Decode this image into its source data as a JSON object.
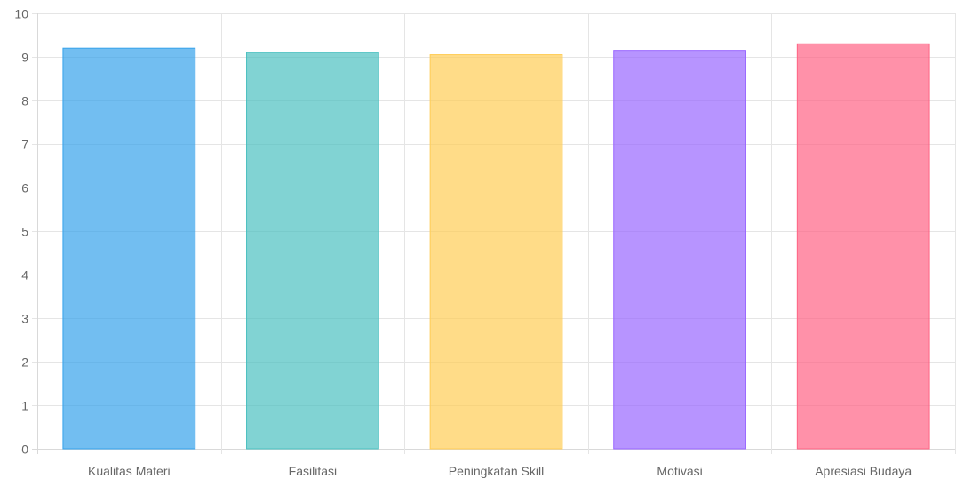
{
  "chart_data": {
    "type": "bar",
    "categories": [
      "Kualitas Materi",
      "Fasilitasi",
      "Peningkatan Skill",
      "Motivasi",
      "Apresiasi Budaya"
    ],
    "values": [
      9.2,
      9.1,
      9.05,
      9.15,
      9.3
    ],
    "colors": [
      {
        "fill": "rgba(54,162,235,0.7)",
        "stroke": "#36a2eb"
      },
      {
        "fill": "rgba(75,192,192,0.7)",
        "stroke": "#4bc0c0"
      },
      {
        "fill": "rgba(255,205,86,0.7)",
        "stroke": "#ffcd56"
      },
      {
        "fill": "rgba(153,102,255,0.7)",
        "stroke": "#9966ff"
      },
      {
        "fill": "rgba(255,99,132,0.7)",
        "stroke": "#ff6384"
      }
    ],
    "title": "",
    "xlabel": "",
    "ylabel": "",
    "ylim": [
      0,
      10
    ],
    "yticks": [
      0,
      1,
      2,
      3,
      4,
      5,
      6,
      7,
      8,
      9,
      10
    ],
    "grid": true,
    "legend": "none"
  }
}
